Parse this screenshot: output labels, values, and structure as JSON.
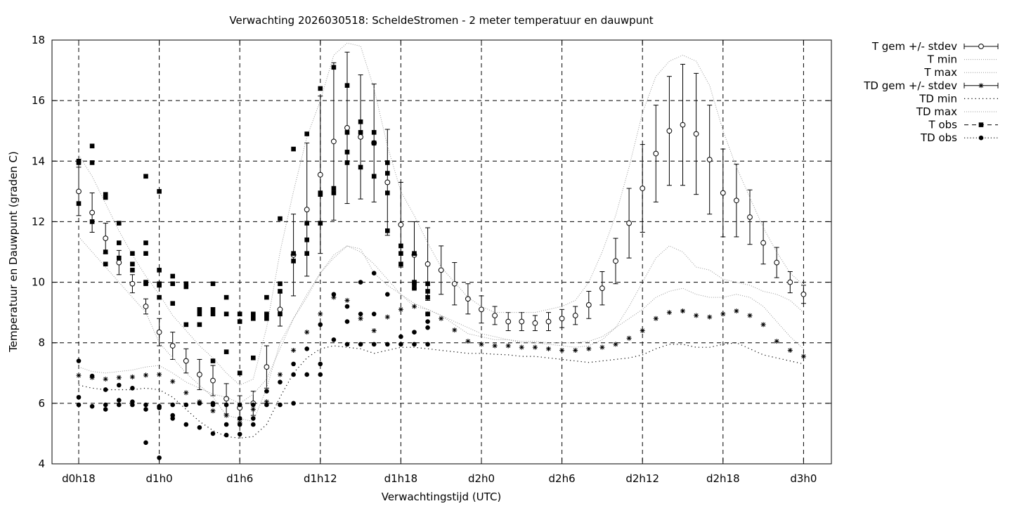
{
  "chart_data": {
    "type": "scatter",
    "title": "Verwachting 2026030518: ScheldeStromen - 2 meter temperatuur en dauwpunt",
    "xlabel": "Verwachtingstijd (UTC)",
    "ylabel": "Temperatuur en Dauwpunt (graden C)",
    "x_unit": "forecast hour",
    "xlim": [
      15,
      72
    ],
    "ylim": [
      4,
      18
    ],
    "x_ticks": [
      {
        "x": 18,
        "label": "d0h18"
      },
      {
        "x": 24,
        "label": "d1h0"
      },
      {
        "x": 30,
        "label": "d1h6"
      },
      {
        "x": 36,
        "label": "d1h12"
      },
      {
        "x": 42,
        "label": "d1h18"
      },
      {
        "x": 48,
        "label": "d2h0"
      },
      {
        "x": 54,
        "label": "d2h6"
      },
      {
        "x": 60,
        "label": "d2h12"
      },
      {
        "x": 66,
        "label": "d2h18"
      },
      {
        "x": 72,
        "label": "d3h0"
      }
    ],
    "y_ticks": [
      4,
      6,
      8,
      10,
      12,
      14,
      16,
      18
    ],
    "y_tick_labels": [
      "4",
      "6",
      "8",
      "10",
      "12",
      "14",
      "16",
      "18"
    ],
    "grid": true,
    "legend_position": "outside-right",
    "series": [
      {
        "name": "T gem +/- stdev",
        "style": "open-circle-errorbar",
        "x": [
          18,
          19,
          20,
          21,
          22,
          23,
          24,
          25,
          26,
          27,
          28,
          29,
          30,
          31,
          32,
          33,
          34,
          35,
          36,
          37,
          38,
          39,
          40,
          41,
          42,
          43,
          44,
          45,
          46,
          47,
          48,
          49,
          50,
          51,
          52,
          53,
          54,
          55,
          56,
          57,
          58,
          59,
          60,
          61,
          62,
          63,
          64,
          65,
          66,
          67,
          68,
          69,
          70,
          71,
          72
        ],
        "y": [
          13.0,
          12.3,
          11.45,
          10.65,
          9.95,
          9.2,
          8.35,
          7.9,
          7.4,
          6.95,
          6.75,
          6.15,
          5.85,
          6.0,
          7.2,
          9.1,
          10.9,
          12.4,
          13.55,
          14.65,
          15.1,
          14.8,
          14.6,
          13.3,
          11.9,
          10.9,
          10.6,
          10.4,
          9.95,
          9.45,
          9.1,
          8.9,
          8.7,
          8.7,
          8.65,
          8.7,
          8.8,
          8.9,
          9.25,
          9.8,
          10.7,
          11.95,
          13.1,
          14.25,
          15.0,
          15.2,
          14.9,
          14.05,
          12.95,
          12.7,
          12.15,
          11.3,
          10.65,
          10.0,
          9.6
        ],
        "err": [
          0.8,
          0.65,
          0.5,
          0.4,
          0.3,
          0.25,
          0.45,
          0.45,
          0.4,
          0.5,
          0.5,
          0.5,
          0.4,
          0.4,
          0.7,
          0.55,
          1.35,
          2.2,
          2.6,
          2.6,
          2.5,
          2.05,
          1.95,
          1.75,
          1.4,
          1.1,
          1.2,
          0.8,
          0.7,
          0.5,
          0.45,
          0.3,
          0.3,
          0.3,
          0.25,
          0.3,
          0.3,
          0.3,
          0.45,
          0.55,
          0.75,
          1.15,
          1.45,
          1.6,
          1.8,
          2.0,
          2.0,
          1.8,
          1.45,
          1.2,
          0.9,
          0.7,
          0.5,
          0.35,
          0.3
        ]
      },
      {
        "name": "T min",
        "style": "dotted",
        "x": [
          18,
          19,
          20,
          21,
          22,
          23,
          24,
          25,
          26,
          27,
          28,
          29,
          30,
          31,
          32,
          33,
          34,
          35,
          36,
          37,
          38,
          39,
          40,
          41,
          42,
          43,
          44,
          45,
          46,
          47,
          48,
          49,
          50,
          51,
          52,
          53,
          54,
          55,
          56,
          57,
          58,
          59,
          60,
          61,
          62,
          63,
          64,
          65,
          66,
          67,
          68,
          69,
          70,
          71,
          72
        ],
        "y": [
          11.5,
          11.0,
          10.5,
          10.0,
          9.5,
          9.0,
          8.0,
          7.5,
          7.0,
          6.6,
          6.2,
          5.6,
          5.5,
          5.4,
          6.5,
          8.0,
          8.8,
          9.5,
          10.3,
          10.9,
          11.2,
          11.0,
          10.6,
          10.1,
          9.6,
          9.2,
          9.1,
          8.9,
          8.7,
          8.5,
          8.3,
          8.2,
          8.1,
          8.0,
          8.0,
          7.95,
          7.9,
          7.85,
          7.9,
          8.1,
          8.5,
          9.2,
          10.0,
          10.8,
          11.2,
          11.0,
          10.5,
          10.4,
          10.1,
          10.0,
          9.9,
          9.7,
          9.6,
          9.4,
          9.0
        ]
      },
      {
        "name": "T max",
        "style": "dotted",
        "x": [
          18,
          19,
          20,
          21,
          22,
          23,
          24,
          25,
          26,
          27,
          28,
          29,
          30,
          31,
          32,
          33,
          34,
          35,
          36,
          37,
          38,
          39,
          40,
          41,
          42,
          43,
          44,
          45,
          46,
          47,
          48,
          49,
          50,
          51,
          52,
          53,
          54,
          55,
          56,
          57,
          58,
          59,
          60,
          61,
          62,
          63,
          64,
          65,
          66,
          67,
          68,
          69,
          70,
          71,
          72
        ],
        "y": [
          14.2,
          13.5,
          12.6,
          11.7,
          10.9,
          10.2,
          9.6,
          8.9,
          8.4,
          7.9,
          7.5,
          7.0,
          6.6,
          6.8,
          8.5,
          11.0,
          13.0,
          14.8,
          16.0,
          17.5,
          17.9,
          17.8,
          16.4,
          14.5,
          13.0,
          12.2,
          11.3,
          10.5,
          10.0,
          9.5,
          9.2,
          9.0,
          9.0,
          9.0,
          9.0,
          9.1,
          9.2,
          9.4,
          10.0,
          11.0,
          12.2,
          13.8,
          15.6,
          16.8,
          17.3,
          17.5,
          17.3,
          16.5,
          15.0,
          13.8,
          12.8,
          11.8,
          11.0,
          10.3,
          9.9
        ]
      },
      {
        "name": "TD gem +/- stdev",
        "style": "star-errorbar",
        "x": [
          18,
          19,
          20,
          21,
          22,
          23,
          24,
          25,
          26,
          27,
          28,
          29,
          30,
          31,
          32,
          33,
          34,
          35,
          36,
          37,
          38,
          39,
          40,
          41,
          42,
          43,
          44,
          45,
          46,
          47,
          48,
          49,
          50,
          51,
          52,
          53,
          54,
          55,
          56,
          57,
          58,
          59,
          60,
          61,
          62,
          63,
          64,
          65,
          66,
          67,
          68,
          69,
          70,
          71,
          72
        ],
        "y": [
          6.92,
          6.85,
          6.8,
          6.85,
          6.87,
          6.93,
          6.95,
          6.72,
          6.35,
          6.05,
          5.75,
          5.6,
          5.35,
          5.8,
          6.05,
          6.95,
          7.75,
          8.35,
          8.95,
          9.5,
          9.4,
          8.8,
          8.4,
          8.85,
          9.1,
          9.2,
          8.95,
          8.8,
          8.42,
          8.05,
          7.95,
          7.9,
          7.9,
          7.85,
          7.85,
          7.8,
          7.75,
          7.75,
          7.8,
          7.85,
          7.95,
          8.15,
          8.4,
          8.8,
          9.0,
          9.05,
          8.9,
          8.85,
          8.95,
          9.05,
          8.9,
          8.6,
          8.05,
          7.75,
          7.55
        ]
      },
      {
        "name": "TD min",
        "style": "sparse-dotted",
        "x": [
          18,
          19,
          20,
          21,
          22,
          23,
          24,
          25,
          26,
          27,
          28,
          29,
          30,
          31,
          32,
          33,
          34,
          35,
          36,
          37,
          38,
          39,
          40,
          41,
          42,
          43,
          44,
          45,
          46,
          47,
          48,
          49,
          50,
          51,
          52,
          53,
          54,
          55,
          56,
          57,
          58,
          59,
          60,
          61,
          62,
          63,
          64,
          65,
          66,
          67,
          68,
          69,
          70,
          71,
          72
        ],
        "y": [
          6.6,
          6.5,
          6.45,
          6.45,
          6.45,
          6.5,
          6.45,
          6.2,
          5.8,
          5.4,
          5.1,
          4.9,
          4.85,
          4.9,
          5.3,
          6.2,
          7.0,
          7.5,
          7.8,
          7.9,
          7.85,
          7.8,
          7.65,
          7.75,
          7.85,
          7.85,
          7.8,
          7.75,
          7.7,
          7.65,
          7.65,
          7.62,
          7.6,
          7.55,
          7.55,
          7.5,
          7.45,
          7.4,
          7.35,
          7.4,
          7.45,
          7.5,
          7.6,
          7.8,
          7.95,
          7.95,
          7.85,
          7.85,
          7.95,
          8.0,
          7.8,
          7.6,
          7.5,
          7.4,
          7.3
        ]
      },
      {
        "name": "TD max",
        "style": "dotted",
        "x": [
          18,
          19,
          20,
          21,
          22,
          23,
          24,
          25,
          26,
          27,
          28,
          29,
          30,
          31,
          32,
          33,
          34,
          35,
          36,
          37,
          38,
          39,
          40,
          41,
          42,
          43,
          44,
          45,
          46,
          47,
          48,
          49,
          50,
          51,
          52,
          53,
          54,
          55,
          56,
          57,
          58,
          59,
          60,
          61,
          62,
          63,
          64,
          65,
          66,
          67,
          68,
          69,
          70,
          71,
          72
        ],
        "y": [
          7.2,
          7.05,
          7.0,
          7.05,
          7.1,
          7.2,
          7.25,
          7.0,
          6.7,
          6.5,
          6.3,
          6.2,
          6.0,
          6.3,
          6.8,
          7.8,
          8.8,
          9.6,
          10.3,
          10.8,
          11.2,
          11.1,
          10.3,
          9.9,
          9.6,
          9.3,
          9.1,
          8.9,
          8.6,
          8.3,
          8.2,
          8.1,
          8.1,
          8.05,
          8.05,
          8.0,
          8.0,
          8.0,
          8.05,
          8.2,
          8.5,
          8.8,
          9.1,
          9.5,
          9.7,
          9.8,
          9.6,
          9.5,
          9.5,
          9.6,
          9.5,
          9.2,
          8.7,
          8.2,
          7.8
        ]
      },
      {
        "name": "T obs",
        "style": "filled-square",
        "x": [
          18,
          18,
          18,
          19,
          19,
          19,
          20,
          20,
          20,
          20,
          21,
          21,
          21,
          22,
          22,
          22,
          23,
          23,
          23,
          23,
          23,
          24,
          24,
          24,
          24,
          24,
          25,
          25,
          25,
          26,
          26,
          26,
          27,
          27,
          27,
          28,
          28,
          28,
          28,
          29,
          29,
          29,
          30,
          30,
          30,
          31,
          31,
          31,
          32,
          32,
          32,
          33,
          33,
          33,
          33,
          34,
          34,
          34,
          35,
          35,
          35,
          35,
          36,
          36,
          36,
          36,
          37,
          37,
          37,
          38,
          38,
          38,
          38,
          39,
          39,
          39,
          40,
          40,
          40,
          40,
          41,
          41,
          41,
          41,
          42,
          42,
          42,
          43,
          43,
          43,
          43,
          44,
          44,
          44,
          44
        ],
        "y": [
          14.0,
          13.95,
          12.6,
          14.5,
          13.95,
          12.0,
          12.9,
          12.8,
          11.0,
          10.6,
          11.95,
          11.3,
          10.8,
          10.95,
          10.6,
          10.4,
          13.5,
          11.3,
          10.95,
          10.0,
          9.95,
          13.0,
          10.4,
          9.95,
          9.9,
          9.5,
          10.2,
          9.95,
          9.3,
          9.95,
          9.85,
          8.6,
          9.1,
          8.95,
          8.6,
          9.95,
          9.1,
          8.95,
          7.4,
          9.5,
          8.95,
          7.7,
          8.95,
          8.7,
          7.0,
          8.95,
          8.8,
          7.5,
          9.5,
          8.95,
          8.8,
          12.1,
          9.95,
          9.7,
          8.95,
          14.4,
          10.95,
          10.7,
          14.9,
          11.95,
          11.4,
          10.95,
          16.4,
          12.95,
          12.9,
          11.95,
          17.1,
          13.1,
          12.95,
          16.5,
          14.95,
          14.3,
          13.95,
          15.3,
          14.95,
          13.8,
          14.95,
          14.6,
          14.6,
          13.5,
          13.95,
          13.6,
          12.95,
          11.7,
          11.2,
          10.95,
          10.6,
          10.95,
          10.0,
          9.95,
          9.8,
          9.95,
          9.7,
          9.5,
          8.95
        ]
      },
      {
        "name": "TD obs",
        "style": "filled-circle",
        "x": [
          18,
          18,
          18,
          19,
          19,
          20,
          20,
          20,
          21,
          21,
          21,
          22,
          22,
          22,
          23,
          23,
          23,
          24,
          24,
          24,
          25,
          25,
          25,
          26,
          26,
          27,
          27,
          28,
          28,
          28,
          29,
          29,
          29,
          30,
          30,
          30,
          30,
          31,
          31,
          31,
          32,
          32,
          33,
          33,
          34,
          34,
          34,
          35,
          35,
          36,
          36,
          36,
          37,
          37,
          38,
          38,
          38,
          39,
          39,
          39,
          40,
          40,
          40,
          41,
          41,
          42,
          42,
          43,
          43,
          44,
          44,
          44
        ],
        "y": [
          7.4,
          6.2,
          5.95,
          6.9,
          5.9,
          6.45,
          5.95,
          5.8,
          6.6,
          6.1,
          5.95,
          6.5,
          6.05,
          5.95,
          5.95,
          5.8,
          4.7,
          5.9,
          5.85,
          4.2,
          5.95,
          5.6,
          5.5,
          5.95,
          5.3,
          6.0,
          5.2,
          6.0,
          5.95,
          5.0,
          5.95,
          5.3,
          4.95,
          5.95,
          5.5,
          5.3,
          4.98,
          5.95,
          5.5,
          5.3,
          6.4,
          5.95,
          6.7,
          5.95,
          7.3,
          6.95,
          6.0,
          7.8,
          6.95,
          8.6,
          7.3,
          6.95,
          9.6,
          8.1,
          9.2,
          8.7,
          7.95,
          10.0,
          8.95,
          7.95,
          10.3,
          8.95,
          7.95,
          9.6,
          7.95,
          8.2,
          7.95,
          8.35,
          7.95,
          8.7,
          8.5,
          7.95
        ]
      }
    ]
  }
}
